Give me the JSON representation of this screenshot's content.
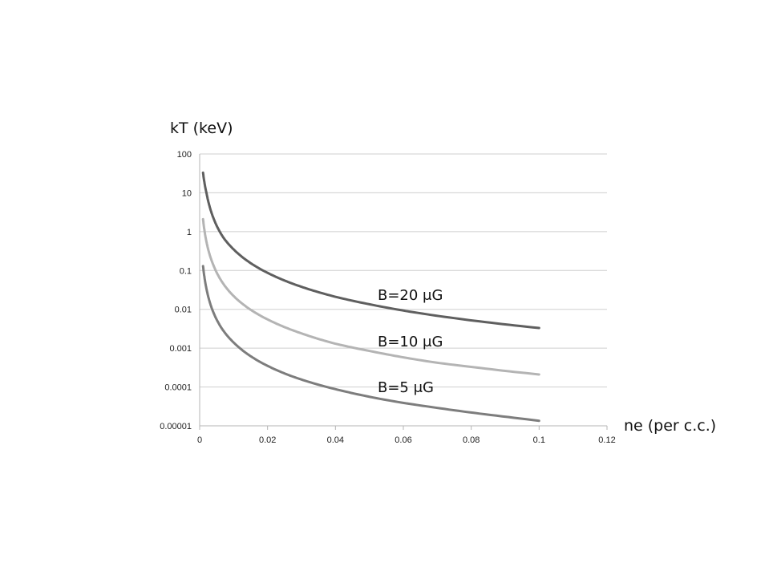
{
  "chart_data": {
    "type": "line",
    "title": "",
    "ylabel": "kT (keV)",
    "xlabel": "ne (per c.c.)",
    "xscale": "linear",
    "yscale": "log",
    "xlim": [
      0,
      0.12
    ],
    "ylim": [
      1e-05,
      100
    ],
    "x_ticks": [
      0,
      0.02,
      0.04,
      0.06,
      0.08,
      0.1,
      0.12
    ],
    "x_tick_labels": [
      "0",
      "0.02",
      "0.04",
      "0.06",
      "0.08",
      "0.1",
      "0.12"
    ],
    "y_ticks": [
      1e-05,
      0.0001,
      0.001,
      0.01,
      0.1,
      1,
      10,
      100
    ],
    "y_tick_labels": [
      "0.00001",
      "0.0001",
      "0.001",
      "0.01",
      "0.1",
      "1",
      "10",
      "100"
    ],
    "grid": "horizontal",
    "legend": "none",
    "series": [
      {
        "name": "B=20 μG",
        "color": "#5f5f5f",
        "x": [
          0.001,
          0.002,
          0.004,
          0.007,
          0.01,
          0.02,
          0.03,
          0.04,
          0.05,
          0.06,
          0.07,
          0.08,
          0.09,
          0.1
        ],
        "y": [
          33,
          10,
          2.3,
          0.7,
          0.35,
          0.087,
          0.038,
          0.021,
          0.0135,
          0.0093,
          0.0068,
          0.0052,
          0.0041,
          0.0033
        ]
      },
      {
        "name": "B=10 μG",
        "color": "#b4b4b4",
        "x": [
          0.001,
          0.002,
          0.004,
          0.007,
          0.01,
          0.02,
          0.03,
          0.04,
          0.05,
          0.06,
          0.07,
          0.08,
          0.09,
          0.1
        ],
        "y": [
          2.1,
          0.55,
          0.14,
          0.045,
          0.022,
          0.0055,
          0.0024,
          0.0013,
          0.00085,
          0.00058,
          0.00042,
          0.00033,
          0.00026,
          0.00021
        ]
      },
      {
        "name": "B=5 μG",
        "color": "#7d7d7d",
        "x": [
          0.001,
          0.002,
          0.004,
          0.007,
          0.01,
          0.02,
          0.03,
          0.04,
          0.05,
          0.06,
          0.07,
          0.08,
          0.09,
          0.1
        ],
        "y": [
          0.13,
          0.034,
          0.0085,
          0.0028,
          0.0014,
          0.00035,
          0.000155,
          8.8e-05,
          5.6e-05,
          3.9e-05,
          2.9e-05,
          2.2e-05,
          1.72e-05,
          1.35e-05
        ]
      }
    ]
  }
}
